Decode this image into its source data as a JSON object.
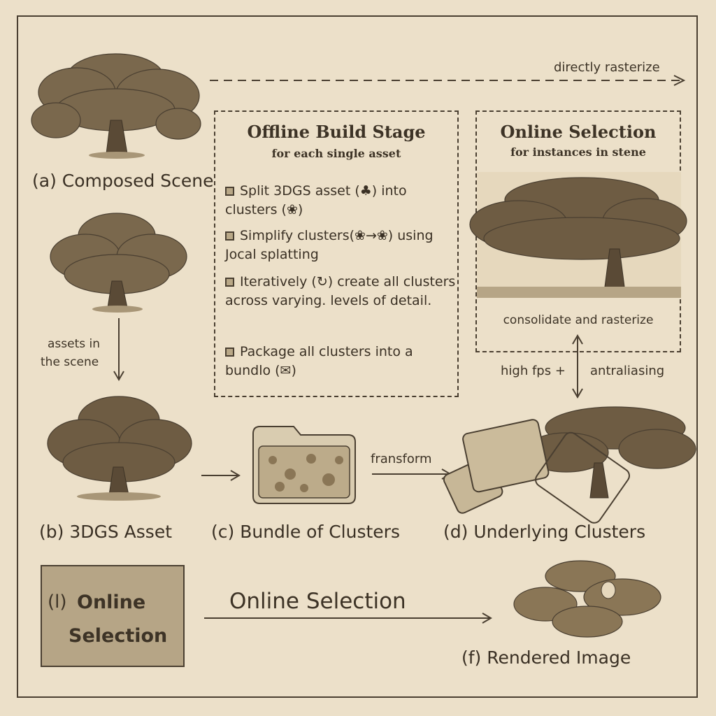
{
  "captions": {
    "composed_scene": "(a) Composed Scene",
    "asset": "(b) 3DGS Asset",
    "bundle": "(c) Bundle of Clusters",
    "underlying": "(d) Underlying Clusters",
    "rendered": "(f) Rendered Image"
  },
  "arrows": {
    "directly_rasterize": "directly rasterize",
    "assets_in_scene_1": "assets in",
    "assets_in_scene_2": "the scene",
    "transform": "fransform",
    "high_fps": "high fps +",
    "antialiasing": "antraliasing",
    "online_selection_arrow": "Online Selection"
  },
  "offline": {
    "title": "Offline Build Stage",
    "subtitle": "for each single asset",
    "steps": [
      "Split 3DGS asset (♣) into clusters (❀)",
      "Simplify clusters(❀→❀) using Jocal splatting",
      "Iteratively (↻) create all clusters across varying. levels of detail.",
      "Package all clusters into a bundlo (✉)"
    ]
  },
  "online": {
    "title": "Online Selection",
    "subtitle": "for instances in stene",
    "caption": "consolidate and rasterize"
  },
  "selection_box": {
    "prefix": "(l)",
    "line1": "Online",
    "line2": "Selection"
  },
  "colors": {
    "background": "#ece0c9",
    "ink": "#4a3f31",
    "foliage": "#6b5a42",
    "box_fill": "#b6a586"
  }
}
